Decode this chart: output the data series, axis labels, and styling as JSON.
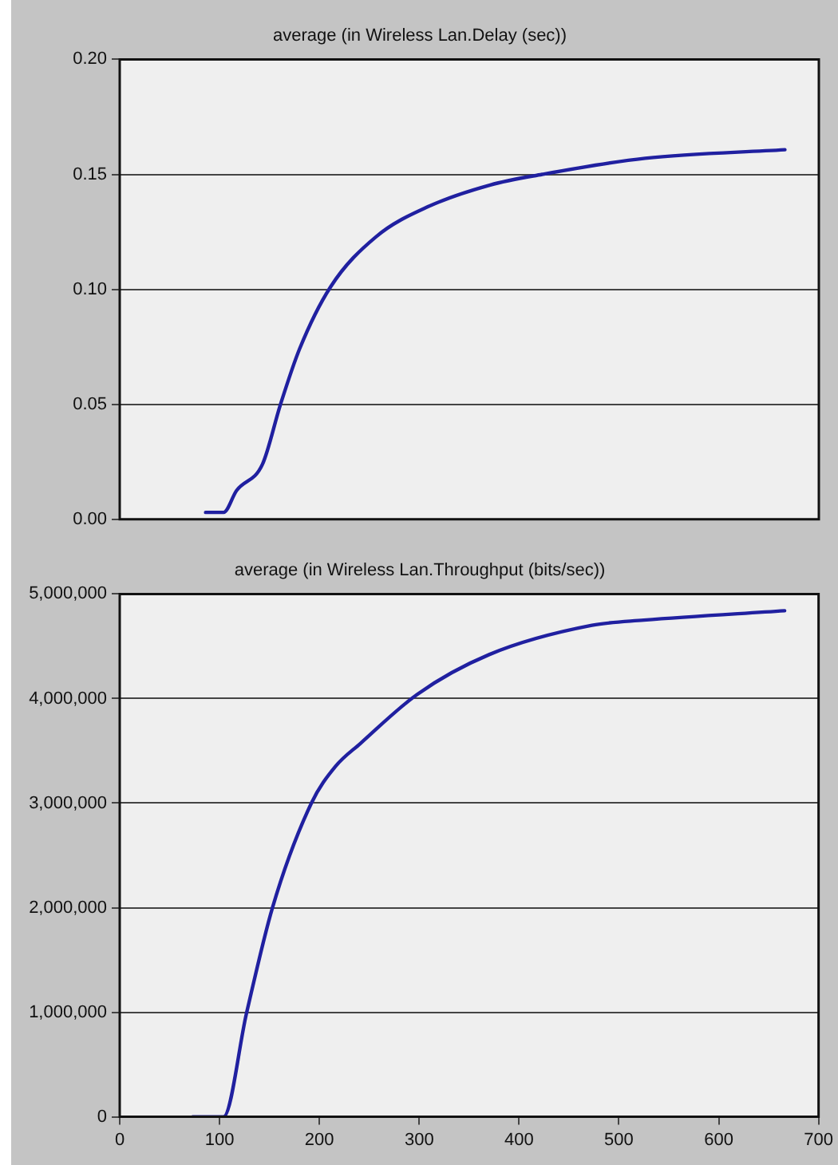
{
  "chart_data": [
    {
      "type": "line",
      "title": "average (in Wireless Lan.Delay (sec))",
      "x": [
        86,
        104,
        117,
        143,
        161,
        180,
        211,
        257,
        309,
        371,
        423,
        526,
        666
      ],
      "series": [
        {
          "color": "#2020a0",
          "values": [
            0.003,
            0.003,
            0.0125,
            0.024,
            0.05,
            0.074,
            0.101,
            0.123,
            0.136,
            0.1454,
            0.15,
            0.157,
            0.1607
          ]
        }
      ],
      "xlim": [
        0,
        700
      ],
      "ylim": [
        0,
        0.2
      ],
      "yticks": [
        {
          "value": 0,
          "label": "0.00"
        },
        {
          "value": 0.05,
          "label": "0.05"
        },
        {
          "value": 0.1,
          "label": "0.10"
        },
        {
          "value": 0.15,
          "label": "0.15"
        },
        {
          "value": 0.2,
          "label": "0.20"
        }
      ],
      "tick_labels": "y",
      "grid": "y",
      "legend": false,
      "marker": "none",
      "line_style": "solid"
    },
    {
      "type": "line",
      "title": "average (in Wireless Lan.Throughput (bits/sec))",
      "x": [
        73,
        104,
        127,
        153,
        192,
        216,
        241,
        298,
        370,
        473,
        525,
        666
      ],
      "series": [
        {
          "color": "#2020a0",
          "values": [
            0,
            0,
            990000,
            2000000,
            3000000,
            3350000,
            3570000,
            4040000,
            4420000,
            4700000,
            4750000,
            4840000
          ]
        }
      ],
      "xlim": [
        0,
        700
      ],
      "xticks": [
        0,
        100,
        200,
        300,
        400,
        500,
        600,
        700
      ],
      "ylim": [
        0,
        5000000
      ],
      "yticks": [
        {
          "value": 0,
          "label": "0"
        },
        {
          "value": 1000000,
          "label": "1,000,000"
        },
        {
          "value": 2000000,
          "label": "2,000,000"
        },
        {
          "value": 3000000,
          "label": "3,000,000"
        },
        {
          "value": 4000000,
          "label": "4,000,000"
        },
        {
          "value": 5000000,
          "label": "5,000,000"
        }
      ],
      "grid": "y",
      "legend": false,
      "marker": "none",
      "line_style": "solid"
    }
  ]
}
